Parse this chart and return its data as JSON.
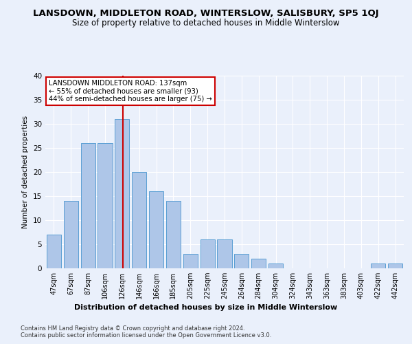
{
  "title": "LANSDOWN, MIDDLETON ROAD, WINTERSLOW, SALISBURY, SP5 1QJ",
  "subtitle": "Size of property relative to detached houses in Middle Winterslow",
  "xlabel": "Distribution of detached houses by size in Middle Winterslow",
  "ylabel": "Number of detached properties",
  "footer1": "Contains HM Land Registry data © Crown copyright and database right 2024.",
  "footer2": "Contains public sector information licensed under the Open Government Licence v3.0.",
  "bin_labels": [
    "47sqm",
    "67sqm",
    "87sqm",
    "106sqm",
    "126sqm",
    "146sqm",
    "166sqm",
    "185sqm",
    "205sqm",
    "225sqm",
    "245sqm",
    "264sqm",
    "284sqm",
    "304sqm",
    "324sqm",
    "343sqm",
    "363sqm",
    "383sqm",
    "403sqm",
    "422sqm",
    "442sqm"
  ],
  "bar_values": [
    7,
    14,
    26,
    26,
    31,
    20,
    16,
    14,
    3,
    6,
    6,
    3,
    2,
    1,
    0,
    0,
    0,
    0,
    0,
    1,
    1
  ],
  "bar_color": "#aec6e8",
  "bar_edge_color": "#5a9fd4",
  "reference_line_x": 137,
  "bin_edges": [
    47,
    67,
    87,
    106,
    126,
    146,
    166,
    185,
    205,
    225,
    245,
    264,
    284,
    304,
    324,
    343,
    363,
    383,
    403,
    422,
    442,
    462
  ],
  "annotation_text": "LANSDOWN MIDDLETON ROAD: 137sqm\n← 55% of detached houses are smaller (93)\n44% of semi-detached houses are larger (75) →",
  "annotation_box_color": "#ffffff",
  "annotation_box_edge": "#cc0000",
  "vline_color": "#cc0000",
  "ylim": [
    0,
    40
  ],
  "yticks": [
    0,
    5,
    10,
    15,
    20,
    25,
    30,
    35,
    40
  ],
  "background_color": "#eaf0fb",
  "grid_color": "#ffffff",
  "title_fontsize": 9.5,
  "subtitle_fontsize": 8.5
}
